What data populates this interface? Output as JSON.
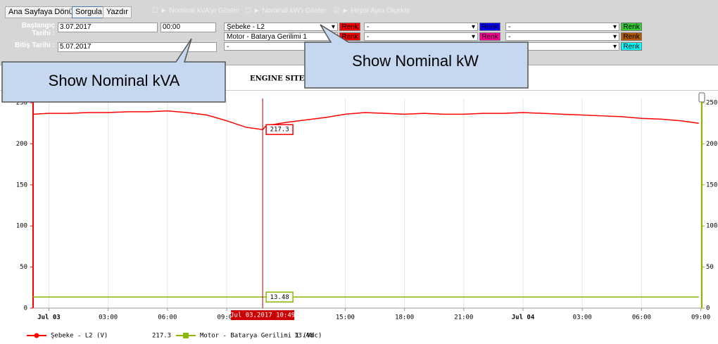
{
  "toolbar": {
    "buttons": [
      "Ana Sayfaya Dönüş",
      "Sorgula",
      "Yazdır"
    ],
    "checkboxes": [
      {
        "label": "Nominal kVA'yı Göster",
        "checked": false
      },
      {
        "label": "Nominal kW'ı Göster",
        "checked": false
      },
      {
        "label": "Hepsi Aynı Ölçekte",
        "checked": true
      }
    ],
    "start_label": "Başlangıç Tarihi :",
    "start_date": "3.07.2017",
    "start_time": "00:00",
    "end_label": "Bitiş Tarihi :",
    "end_date": "5.07.2017",
    "selects": [
      [
        "Şebeke - L2",
        "-",
        "-"
      ],
      [
        "Motor - Batarya Gerilimi 1",
        "-",
        "-"
      ],
      [
        "-",
        "-",
        "-"
      ]
    ],
    "color_button": "Renk",
    "color_button_colors": [
      [
        "#ff0000",
        "#0000ff",
        "#33cc33"
      ],
      [
        "#ff0000",
        "#ff0099",
        "#b35900"
      ],
      [
        "#ffff00",
        "#ff9900",
        "#00ffff"
      ]
    ]
  },
  "callouts": [
    "Show Nominal kVA",
    "Show Nominal kW"
  ],
  "chart_data": {
    "type": "line",
    "title": "ENGINE SITE I",
    "x": [
      -0.8,
      0,
      1,
      2,
      3,
      4,
      5,
      6,
      7,
      8,
      9,
      10,
      10.82,
      11,
      12,
      13,
      14,
      15,
      16,
      17,
      18,
      19,
      20,
      21,
      22,
      23,
      24,
      25,
      26,
      27,
      28,
      29,
      30,
      31,
      32,
      32.9
    ],
    "series": [
      {
        "name": "Şebeke - L2 (V)",
        "color": "#ff0000",
        "values": [
          236,
          237,
          237,
          238,
          238,
          239,
          239,
          240,
          238,
          235,
          228,
          220,
          217.3,
          222,
          226,
          229,
          232,
          236,
          238,
          237,
          236,
          237,
          236,
          236,
          237,
          237,
          238,
          237,
          236,
          235,
          234,
          233,
          231,
          230,
          228,
          225
        ]
      },
      {
        "name": "Motor - Batarya Gerilimi 1 (Vdc)",
        "color": "#8db600",
        "axis": "y2",
        "values": [
          13.48,
          13.48,
          13.48,
          13.48,
          13.48,
          13.48,
          13.48,
          13.48,
          13.48,
          13.48,
          13.48,
          13.48,
          13.48,
          13.48,
          13.48,
          13.48,
          13.48,
          13.48,
          13.48,
          13.48,
          13.48,
          13.48,
          13.48,
          13.48,
          13.48,
          13.48,
          13.48,
          13.48,
          13.48,
          13.48,
          13.48,
          13.48,
          13.48,
          13.48,
          13.48,
          13.48
        ]
      }
    ],
    "xlim": [
      -0.8,
      33.05
    ],
    "xticks": [
      {
        "value": 0,
        "label": "Jul 03"
      },
      {
        "value": 3,
        "label": "03:00"
      },
      {
        "value": 6,
        "label": "06:00"
      },
      {
        "value": 9,
        "label": "09:00"
      },
      {
        "value": 15,
        "label": "15:00"
      },
      {
        "value": 18,
        "label": "18:00"
      },
      {
        "value": 21,
        "label": "21:00"
      },
      {
        "value": 24,
        "label": "Jul 04"
      },
      {
        "value": 27,
        "label": "03:00"
      },
      {
        "value": 30,
        "label": "06:00"
      },
      {
        "value": 33,
        "label": "09:00"
      }
    ],
    "ylim": [
      0,
      250
    ],
    "yticks": [
      0,
      50,
      100,
      150,
      200,
      250
    ],
    "y2lim": [
      0,
      250
    ],
    "y2ticks": [
      0,
      50,
      100,
      150,
      200,
      250
    ],
    "grid": true,
    "crosshair": {
      "x": 10.82,
      "label": "Jul 03,2017 10:49"
    },
    "tooltip_values": [
      217.3,
      13.48
    ],
    "legend_values": [
      217.3,
      13.48
    ]
  }
}
